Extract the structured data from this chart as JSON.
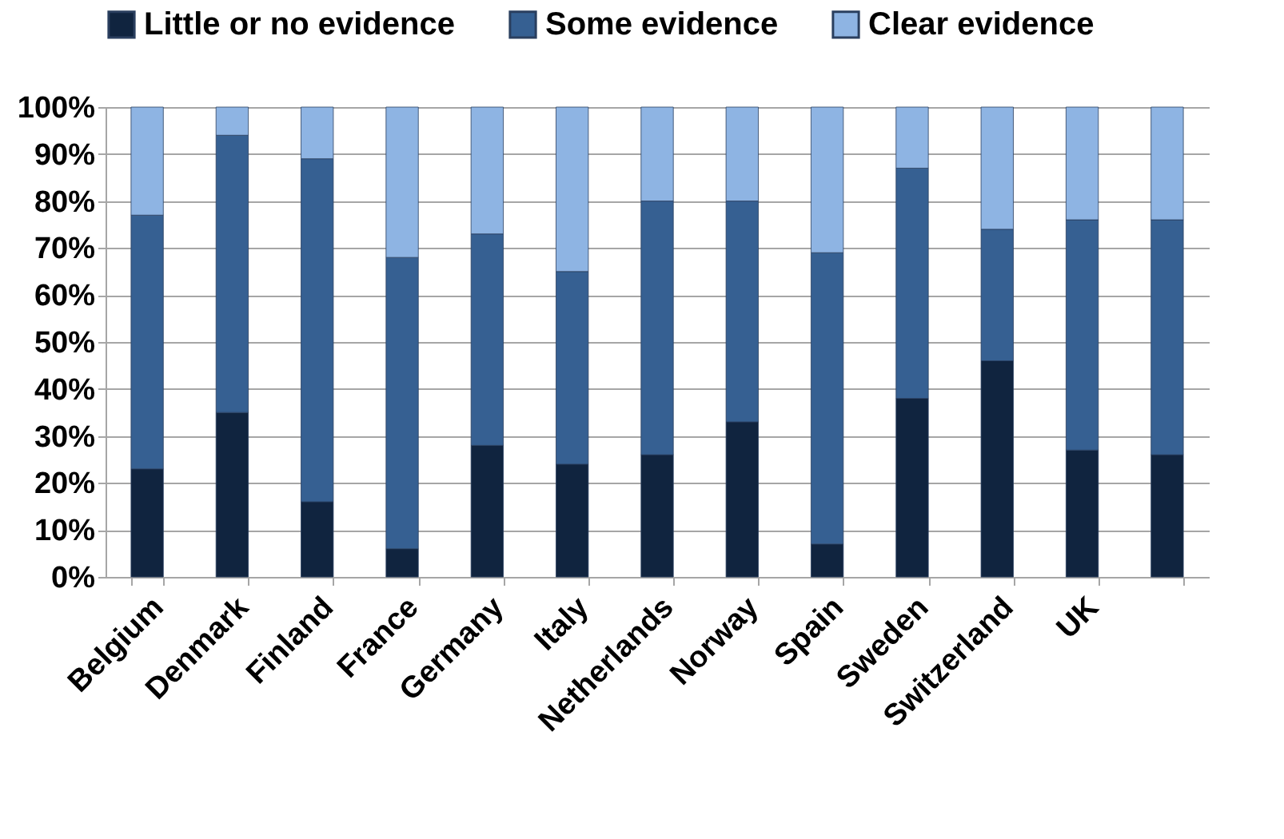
{
  "chart_data": {
    "type": "bar",
    "stacked": true,
    "categories": [
      "Belgium",
      "Denmark",
      "Finland",
      "France",
      "Germany",
      "Italy",
      "Netherlands",
      "Norway",
      "Spain",
      "Sweden",
      "Switzerland",
      "UK",
      null
    ],
    "series": [
      {
        "name": "Little or no evidence",
        "color": "#10243f",
        "values": [
          23,
          35,
          16,
          6,
          28,
          24,
          26,
          33,
          7,
          38,
          46,
          27,
          26
        ]
      },
      {
        "name": "Some evidence",
        "color": "#366092",
        "values": [
          54,
          59,
          73,
          62,
          45,
          41,
          54,
          47,
          62,
          49,
          28,
          49,
          50
        ]
      },
      {
        "name": "Clear evidence",
        "color": "#8eb4e3",
        "values": [
          23,
          6,
          11,
          32,
          27,
          35,
          20,
          20,
          31,
          13,
          26,
          24,
          24
        ]
      }
    ],
    "ylim": [
      0,
      100
    ],
    "yticks": [
      {
        "value": 0,
        "label": "0%"
      },
      {
        "value": 10,
        "label": "10%"
      },
      {
        "value": 20,
        "label": "20%"
      },
      {
        "value": 30,
        "label": "30%"
      },
      {
        "value": 40,
        "label": "40%"
      },
      {
        "value": 50,
        "label": "50%"
      },
      {
        "value": 60,
        "label": "60%"
      },
      {
        "value": 70,
        "label": "70%"
      },
      {
        "value": 80,
        "label": "80%"
      },
      {
        "value": 90,
        "label": "90%"
      },
      {
        "value": 100,
        "label": "100%"
      }
    ],
    "grid": "y",
    "legend": "top"
  }
}
